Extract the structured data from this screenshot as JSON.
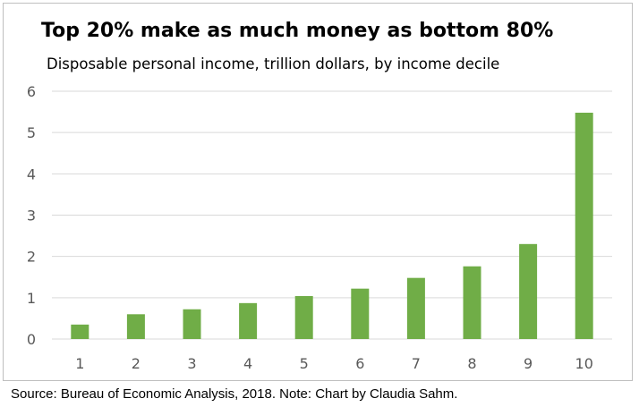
{
  "chart_data": {
    "type": "bar",
    "title": "Top 20% make as much money as bottom 80%",
    "subtitle": "Disposable personal income, trillion dollars, by income decile",
    "categories": [
      "1",
      "2",
      "3",
      "4",
      "5",
      "6",
      "7",
      "8",
      "9",
      "10"
    ],
    "values": [
      0.35,
      0.6,
      0.72,
      0.87,
      1.04,
      1.22,
      1.48,
      1.76,
      2.3,
      5.48
    ],
    "yticks": [
      "0",
      "1",
      "2",
      "3",
      "4",
      "5",
      "6"
    ],
    "ylim": [
      0,
      6
    ],
    "grid": true,
    "legend": "none",
    "bar_color": "#70ad47",
    "gridline_color": "#d9d9d9",
    "tick_label_color": "#595959"
  },
  "footer": {
    "source": "Source: Bureau of Economic Analysis, 2018. Note: Chart by Claudia Sahm."
  }
}
